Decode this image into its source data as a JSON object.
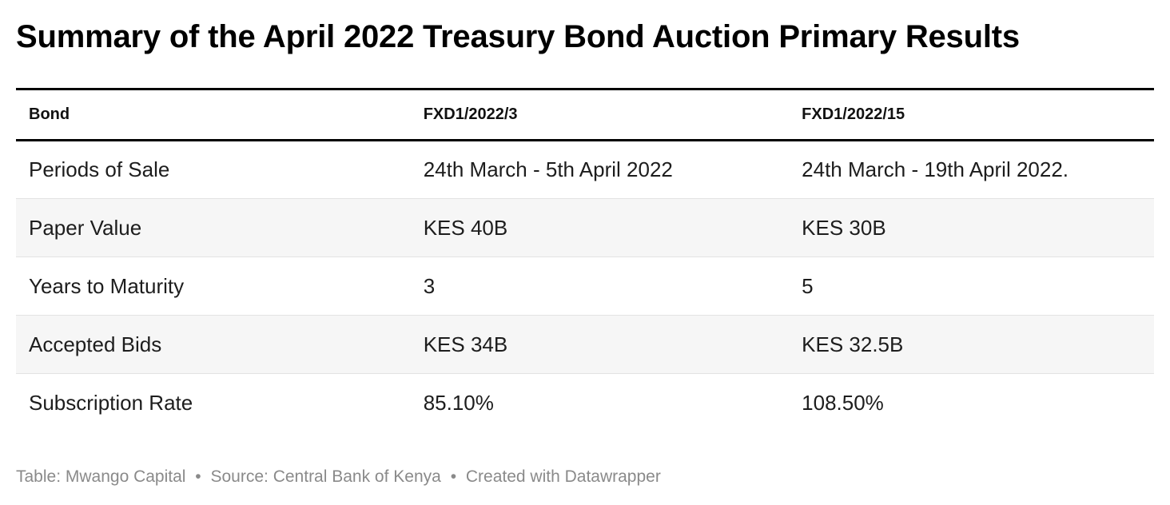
{
  "title": "Summary of the April 2022 Treasury Bond Auction Primary Results",
  "chart_data": {
    "type": "table",
    "columns": [
      "Bond",
      "FXD1/2022/3",
      "FXD1/2022/15"
    ],
    "rows": [
      [
        "Periods of Sale",
        "24th March - 5th April 2022",
        "24th March - 19th April 2022."
      ],
      [
        "Paper Value",
        "KES 40B",
        "KES 30B"
      ],
      [
        "Years to Maturity",
        "3",
        "5"
      ],
      [
        "Accepted Bids",
        "KES 34B",
        "KES 32.5B"
      ],
      [
        "Subscription Rate",
        "85.10%",
        "108.50%"
      ]
    ]
  },
  "footer": {
    "table_credit": "Table: Mwango Capital",
    "source": "Source: Central Bank of Kenya",
    "created_with": "Created with Datawrapper",
    "separator": "•"
  }
}
